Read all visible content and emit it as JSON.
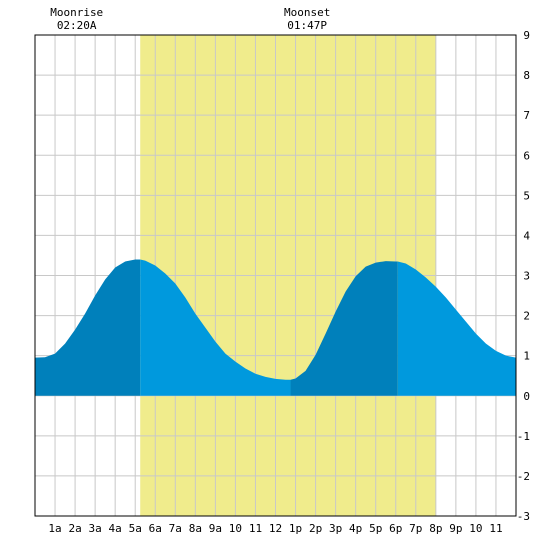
{
  "chart_data": {
    "type": "area",
    "title": "",
    "xlabel": "",
    "ylabel": "",
    "xlim": [
      0,
      24
    ],
    "ylim": [
      -3,
      9
    ],
    "x_tick_labels": [
      "1a",
      "2a",
      "3a",
      "4a",
      "5a",
      "6a",
      "7a",
      "8a",
      "9a",
      "10",
      "11",
      "12",
      "1p",
      "2p",
      "3p",
      "4p",
      "5p",
      "6p",
      "7p",
      "8p",
      "9p",
      "10",
      "11"
    ],
    "y_ticks": [
      -3,
      -2,
      -1,
      0,
      1,
      2,
      3,
      4,
      5,
      6,
      7,
      8,
      9
    ],
    "grid": true,
    "daylight": {
      "start": 5.25,
      "end": 20.0
    },
    "annotations": [
      {
        "label": "Moonrise",
        "time": "02:20A",
        "x": 2.33
      },
      {
        "label": "Moonset",
        "time": "01:47P",
        "x": 13.78
      }
    ],
    "tide_extremes": [
      {
        "type": "high",
        "x": 5.25,
        "value": 3.4
      },
      {
        "type": "low",
        "x": 12.75,
        "value": 0.4
      },
      {
        "type": "high",
        "x": 18.1,
        "value": 3.35
      }
    ],
    "series": [
      {
        "x": [
          0,
          0.5,
          1,
          1.5,
          2,
          2.5,
          3,
          3.5,
          4,
          4.5,
          5,
          5.25,
          5.5,
          6,
          6.5,
          7,
          7.5,
          8,
          8.5,
          9,
          9.5,
          10,
          10.5,
          11,
          11.5,
          12,
          12.5,
          12.75,
          13,
          13.5,
          14,
          14.5,
          15,
          15.5,
          16,
          16.5,
          17,
          17.5,
          18,
          18.1,
          18.5,
          19,
          19.5,
          20,
          20.5,
          21,
          21.5,
          22,
          22.5,
          23,
          23.5,
          24
        ],
        "values": [
          0.95,
          0.96,
          1.05,
          1.3,
          1.65,
          2.05,
          2.5,
          2.9,
          3.2,
          3.35,
          3.4,
          3.4,
          3.37,
          3.25,
          3.05,
          2.8,
          2.45,
          2.05,
          1.7,
          1.35,
          1.05,
          0.85,
          0.68,
          0.55,
          0.47,
          0.42,
          0.4,
          0.4,
          0.43,
          0.62,
          1.02,
          1.55,
          2.1,
          2.6,
          2.98,
          3.22,
          3.32,
          3.36,
          3.35,
          3.35,
          3.3,
          3.15,
          2.95,
          2.72,
          2.45,
          2.15,
          1.85,
          1.55,
          1.3,
          1.12,
          1.0,
          0.95
        ]
      }
    ],
    "colors": {
      "background": "#ffffff",
      "daylight": "#f0ec8c",
      "grid": "#c8c8c8",
      "tide_light": "#0099dd",
      "tide_dark": "#0080bb",
      "border": "#000000"
    }
  }
}
